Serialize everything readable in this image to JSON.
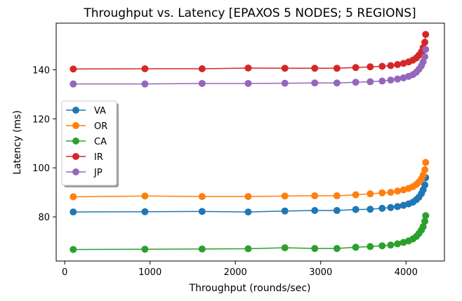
{
  "chart_data": {
    "type": "line",
    "title": "Throughput vs. Latency [EPAXOS 5 NODES; 5 REGIONS]",
    "xlabel": "Throughput (rounds/sec)",
    "ylabel": "Latency (ms)",
    "xlim": [
      -100,
      4450
    ],
    "ylim": [
      62,
      159
    ],
    "xticks": [
      0,
      1000,
      2000,
      3000,
      4000
    ],
    "yticks": [
      80,
      100,
      120,
      140
    ],
    "grid": false,
    "legend_position": "center-left",
    "x": [
      100,
      940,
      1610,
      2150,
      2580,
      2930,
      3190,
      3410,
      3580,
      3720,
      3820,
      3900,
      3970,
      4030,
      4080,
      4120,
      4150,
      4180,
      4200,
      4220,
      4230
    ],
    "series": [
      {
        "name": "VA",
        "color": "#1f77b4",
        "values": [
          82.0,
          82.1,
          82.2,
          82.0,
          82.4,
          82.6,
          82.6,
          83.0,
          83.1,
          83.5,
          83.8,
          84.2,
          84.7,
          85.3,
          86.0,
          87.0,
          88.0,
          89.5,
          91.0,
          93.0,
          96.0
        ]
      },
      {
        "name": "OR",
        "color": "#ff7f0e",
        "values": [
          88.2,
          88.5,
          88.3,
          88.3,
          88.5,
          88.6,
          88.6,
          89.0,
          89.4,
          89.8,
          90.0,
          90.5,
          91.0,
          91.6,
          92.3,
          93.2,
          94.2,
          95.5,
          97.0,
          99.2,
          102.2
        ]
      },
      {
        "name": "CA",
        "color": "#2ca02c",
        "values": [
          66.7,
          66.8,
          66.9,
          67.0,
          67.4,
          67.1,
          67.1,
          67.6,
          67.9,
          68.2,
          68.5,
          69.0,
          69.6,
          70.2,
          71.0,
          72.0,
          73.2,
          74.6,
          76.0,
          78.2,
          80.5
        ]
      },
      {
        "name": "IR",
        "color": "#d62728",
        "values": [
          140.3,
          140.4,
          140.4,
          140.7,
          140.6,
          140.6,
          140.6,
          140.9,
          141.2,
          141.4,
          141.7,
          142.1,
          142.6,
          143.2,
          143.9,
          144.8,
          145.9,
          147.3,
          149.0,
          151.2,
          154.4
        ]
      },
      {
        "name": "JP",
        "color": "#9467bd",
        "values": [
          134.2,
          134.2,
          134.4,
          134.4,
          134.5,
          134.6,
          134.6,
          134.9,
          135.1,
          135.4,
          135.8,
          136.2,
          136.7,
          137.3,
          138.0,
          139.0,
          140.2,
          141.6,
          143.2,
          145.3,
          148.3
        ]
      }
    ]
  }
}
